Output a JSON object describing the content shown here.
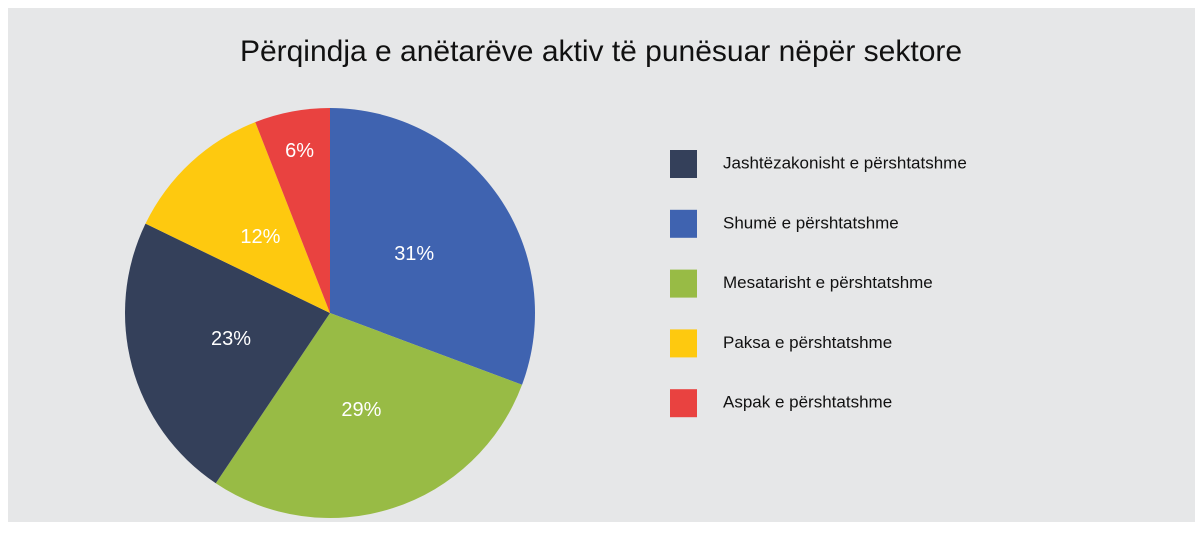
{
  "chart_data": {
    "type": "pie",
    "title": "Përqindja e anëtarëve aktiv të punësuar nëpër sektore",
    "categories": [
      "Jashtëzakonisht e përshtatshme",
      "Shumë e përshtatshme",
      "Mesatarisht e përshtatshme",
      "Paksa e përshtatshme",
      "Aspak e përshtatshme"
    ],
    "values": [
      23,
      31,
      29,
      12,
      6
    ],
    "value_labels": [
      "23%",
      "31%",
      "29%",
      "12%",
      "6%"
    ],
    "colors": [
      "#34405a",
      "#3f63b0",
      "#98bb45",
      "#fec90f",
      "#e94240"
    ],
    "legend": "right"
  }
}
